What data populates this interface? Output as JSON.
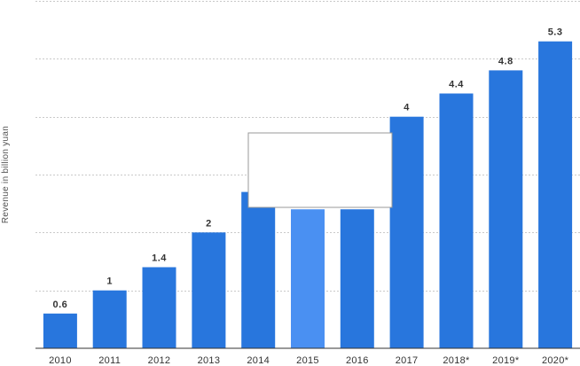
{
  "chart_data": {
    "type": "bar",
    "categories": [
      "2010",
      "2011",
      "2012",
      "2013",
      "2014",
      "2015",
      "2016",
      "2017",
      "2018*",
      "2019*",
      "2020*"
    ],
    "values": [
      0.6,
      1,
      1.4,
      2,
      null,
      null,
      null,
      4,
      4.4,
      4.8,
      5.3
    ],
    "visible_bar_levels": [
      0.6,
      1,
      1.4,
      2,
      2.7,
      2.4,
      2.4,
      4,
      4.4,
      4.8,
      5.3
    ],
    "data_labels": [
      "0.6",
      "1",
      "1.4",
      "2",
      "",
      "",
      "",
      "4",
      "4.4",
      "4.8",
      "5.3"
    ],
    "highlighted_category": "2015",
    "ylabel": "Revenue in billion yuan",
    "ylim": [
      0,
      6
    ],
    "yticks": [
      0,
      1,
      2,
      3,
      4,
      5,
      6
    ],
    "grid": true,
    "colors": {
      "bar": "#2876dd",
      "bar_highlight": "#4a90f2",
      "grid": "#c9c9c9",
      "text": "#333333"
    }
  }
}
